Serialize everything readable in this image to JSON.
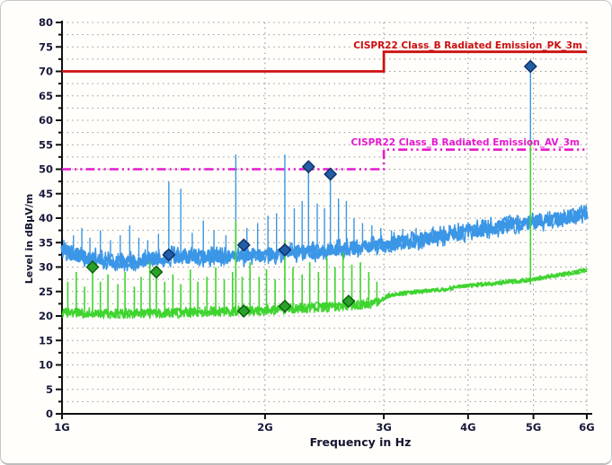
{
  "window": {
    "background": "#fffefb",
    "border_color": "#c7c7c7"
  },
  "chart_data": {
    "type": "line",
    "title": "",
    "xlabel": "Frequency in Hz",
    "ylabel": "Level in dBµV/m",
    "x_scale": "log",
    "x_unit": "GHz",
    "x_range": [
      1,
      6
    ],
    "x_ticks": [
      {
        "f": 1,
        "label": "1G"
      },
      {
        "f": 2,
        "label": "2G"
      },
      {
        "f": 3,
        "label": "3G"
      },
      {
        "f": 4,
        "label": "4G"
      },
      {
        "f": 5,
        "label": "5G"
      },
      {
        "f": 6,
        "label": "6G"
      }
    ],
    "ylim": [
      0,
      80
    ],
    "y_major_step": 5,
    "y_minor_step": 2.5,
    "y_tick_labels": [
      "0",
      "5",
      "10",
      "15",
      "20",
      "25",
      "30",
      "35",
      "40",
      "45",
      "50",
      "55",
      "60",
      "65",
      "70",
      "75",
      "80"
    ],
    "grid": {
      "style": "dotted",
      "color": "#8f8f8f"
    },
    "axis_color": "#111111",
    "tick_label_color": "#18183a",
    "legend": "none",
    "limit_lines": [
      {
        "id": "pk-limit",
        "name": "CISPR22 Class_B Radiated Emission_PK_3m",
        "color": "#cc1111",
        "style": "solid",
        "points": [
          [
            1,
            70
          ],
          [
            3,
            70
          ],
          [
            3,
            74
          ],
          [
            6,
            74
          ]
        ]
      },
      {
        "id": "av-limit",
        "name": "CISPR22 Class_B Radiated Emission_AV_3m",
        "color": "#e619d0",
        "style": "dashdot",
        "points": [
          [
            1,
            50
          ],
          [
            3,
            50
          ],
          [
            3,
            54
          ],
          [
            6,
            54
          ]
        ]
      }
    ],
    "series": [
      {
        "id": "peak-trace",
        "color": "#3b96e6",
        "marker": "diamond",
        "marker_fill": "#235da6",
        "marker_edge": "#0e2f63",
        "noise": [
          {
            "until": 6.01,
            "amp": 1.7
          }
        ],
        "floor": [
          [
            1.0,
            33.5
          ],
          [
            1.05,
            32.5
          ],
          [
            1.1,
            32.0
          ],
          [
            1.2,
            31.3
          ],
          [
            1.3,
            31.2
          ],
          [
            1.4,
            32.0
          ],
          [
            1.5,
            32.3
          ],
          [
            1.6,
            32.0
          ],
          [
            1.7,
            32.3
          ],
          [
            1.8,
            32.0
          ],
          [
            1.9,
            32.3
          ],
          [
            2.0,
            32.6
          ],
          [
            2.1,
            32.4
          ],
          [
            2.2,
            33.0
          ],
          [
            2.3,
            33.2
          ],
          [
            2.4,
            33.0
          ],
          [
            2.5,
            33.4
          ],
          [
            2.6,
            33.6
          ],
          [
            2.75,
            34.0
          ],
          [
            2.9,
            34.3
          ],
          [
            3.1,
            35.0
          ],
          [
            3.3,
            35.4
          ],
          [
            3.6,
            36.2
          ],
          [
            3.9,
            37.0
          ],
          [
            4.2,
            37.8
          ],
          [
            4.5,
            38.3
          ],
          [
            4.8,
            38.8
          ],
          [
            5.1,
            39.3
          ],
          [
            5.4,
            39.8
          ],
          [
            5.7,
            40.3
          ],
          [
            6.0,
            40.6
          ]
        ],
        "spikes": [
          [
            1.04,
            36.5
          ],
          [
            1.07,
            38.0
          ],
          [
            1.1,
            36.0
          ],
          [
            1.14,
            37.5
          ],
          [
            1.18,
            35.5
          ],
          [
            1.22,
            36.5
          ],
          [
            1.26,
            38.5
          ],
          [
            1.3,
            36.0
          ],
          [
            1.34,
            35.5
          ],
          [
            1.39,
            36.8
          ],
          [
            1.44,
            47.5
          ],
          [
            1.5,
            46.0
          ],
          [
            1.56,
            37.0
          ],
          [
            1.62,
            39.5
          ],
          [
            1.68,
            37.5
          ],
          [
            1.75,
            36.5
          ],
          [
            1.81,
            53.0
          ],
          [
            1.88,
            38.0
          ],
          [
            1.95,
            39.0
          ],
          [
            2.02,
            40.5
          ],
          [
            2.08,
            41.0
          ],
          [
            2.14,
            53.0
          ],
          [
            2.21,
            42.0
          ],
          [
            2.27,
            43.5
          ],
          [
            2.32,
            50.5
          ],
          [
            2.39,
            43.0
          ],
          [
            2.45,
            42.0
          ],
          [
            2.5,
            49.0
          ],
          [
            2.57,
            44.0
          ],
          [
            2.64,
            43.5
          ],
          [
            2.71,
            40.0
          ],
          [
            2.79,
            39.0
          ],
          [
            2.88,
            38.5
          ],
          [
            2.97,
            38.0
          ],
          [
            3.08,
            37.5
          ],
          [
            3.2,
            37.8
          ],
          [
            3.35,
            38.0
          ],
          [
            3.55,
            38.3
          ],
          [
            3.75,
            38.6
          ],
          [
            4.0,
            39.2
          ],
          [
            4.25,
            39.6
          ],
          [
            4.5,
            40.0
          ],
          [
            4.75,
            40.5
          ],
          [
            4.95,
            70.5
          ],
          [
            5.25,
            41.3
          ],
          [
            5.55,
            41.8
          ],
          [
            5.85,
            42.3
          ]
        ],
        "markers": [
          [
            1.44,
            32.5
          ],
          [
            1.86,
            34.5
          ],
          [
            2.14,
            33.5
          ],
          [
            2.32,
            50.5
          ],
          [
            2.5,
            49.0
          ],
          [
            4.95,
            71.0
          ]
        ]
      },
      {
        "id": "average-trace",
        "color": "#3fd42f",
        "marker": "diamond",
        "marker_fill": "#2aa12a",
        "marker_edge": "#0c5c0c",
        "noise": [
          {
            "until": 2.95,
            "amp": 1.0
          },
          {
            "until": 6.01,
            "amp": 0.45
          }
        ],
        "floor": [
          [
            1.0,
            20.8
          ],
          [
            1.2,
            20.5
          ],
          [
            1.4,
            20.6
          ],
          [
            1.6,
            20.8
          ],
          [
            1.8,
            21.0
          ],
          [
            2.0,
            21.2
          ],
          [
            2.2,
            21.5
          ],
          [
            2.4,
            21.8
          ],
          [
            2.6,
            22.0
          ],
          [
            2.8,
            22.3
          ],
          [
            2.95,
            23.0
          ],
          [
            3.05,
            24.2
          ],
          [
            3.2,
            24.6
          ],
          [
            3.4,
            25.0
          ],
          [
            3.7,
            25.5
          ],
          [
            4.0,
            26.2
          ],
          [
            4.3,
            26.6
          ],
          [
            4.6,
            27.0
          ],
          [
            4.9,
            27.3
          ],
          [
            5.2,
            28.0
          ],
          [
            5.5,
            28.4
          ],
          [
            5.8,
            29.0
          ],
          [
            6.0,
            29.4
          ]
        ],
        "spikes": [
          [
            1.02,
            27.0
          ],
          [
            1.05,
            29.0
          ],
          [
            1.08,
            26.0
          ],
          [
            1.11,
            30.0
          ],
          [
            1.14,
            27.0
          ],
          [
            1.17,
            28.5
          ],
          [
            1.21,
            26.5
          ],
          [
            1.24,
            29.0
          ],
          [
            1.28,
            26.0
          ],
          [
            1.31,
            28.0
          ],
          [
            1.35,
            31.0
          ],
          [
            1.38,
            29.0
          ],
          [
            1.42,
            27.0
          ],
          [
            1.46,
            28.5
          ],
          [
            1.5,
            26.5
          ],
          [
            1.55,
            29.5
          ],
          [
            1.59,
            27.0
          ],
          [
            1.64,
            28.0
          ],
          [
            1.69,
            30.0
          ],
          [
            1.74,
            27.5
          ],
          [
            1.79,
            29.0
          ],
          [
            1.81,
            39.5
          ],
          [
            1.85,
            28.0
          ],
          [
            1.9,
            31.0
          ],
          [
            1.96,
            28.0
          ],
          [
            2.01,
            29.5
          ],
          [
            2.07,
            27.5
          ],
          [
            2.14,
            35.5
          ],
          [
            2.2,
            30.0
          ],
          [
            2.27,
            28.5
          ],
          [
            2.33,
            31.0
          ],
          [
            2.4,
            29.0
          ],
          [
            2.47,
            32.0
          ],
          [
            2.54,
            30.0
          ],
          [
            2.61,
            33.0
          ],
          [
            2.69,
            30.5
          ],
          [
            2.77,
            31.0
          ],
          [
            2.85,
            29.0
          ],
          [
            2.93,
            27.0
          ],
          [
            4.95,
            56.0
          ]
        ],
        "markers": [
          [
            1.11,
            30.0
          ],
          [
            1.38,
            29.0
          ],
          [
            1.86,
            21.0
          ],
          [
            2.14,
            22.0
          ],
          [
            2.66,
            23.0
          ]
        ]
      }
    ],
    "noise_seed": 77
  }
}
